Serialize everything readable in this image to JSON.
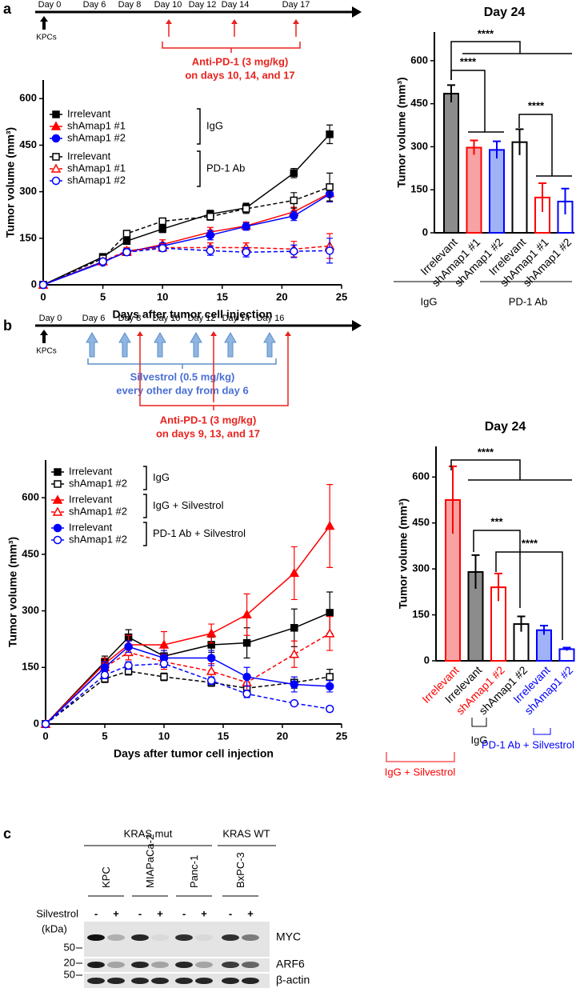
{
  "panels": [
    "a",
    "b",
    "c"
  ],
  "timeline_a": {
    "days": [
      "Day 0",
      "Day 6",
      "Day 8",
      "Day 10",
      "Day 12",
      "Day 14",
      "Day 17"
    ],
    "cells": "KPCs",
    "treatment": "Anti-PD-1 (3 mg/kg)",
    "schedule": "on days 10, 14, and 17"
  },
  "timeline_b": {
    "days": [
      "Day 0",
      "Day 6",
      "Day 8",
      "Day 10",
      "Day 12",
      "Day 14",
      "Day 16"
    ],
    "cells": "KPCs",
    "drug": "Silvestrol (0.5 mg/kg)",
    "drug_schedule": "every other day from day 6",
    "treatment": "Anti-PD-1 (3 mg/kg)",
    "schedule": "on days 9, 13, and 17"
  },
  "chart_data": [
    {
      "type": "line",
      "xlabel": "Days after tumor cell injection",
      "ylabel": "Tumor volume (mm³)",
      "x": [
        0,
        5,
        7,
        10,
        14,
        17,
        21,
        24
      ],
      "xlim": [
        0,
        25
      ],
      "xticks": [
        0,
        5,
        10,
        15,
        20,
        25
      ],
      "ylim": [
        0,
        660
      ],
      "yticks": [
        0,
        150,
        300,
        450,
        600
      ],
      "legend_groups": [
        "IgG",
        "PD-1 Ab"
      ],
      "series": [
        {
          "name": "Irrelevant",
          "color": "#000000",
          "marker": "square",
          "filled": true,
          "dashed": false,
          "values": [
            0,
            90,
            141,
            180,
            228,
            248,
            360,
            485
          ],
          "errors": [
            0,
            10,
            10,
            12,
            12,
            15,
            15,
            30
          ]
        },
        {
          "name": "shAmap1 #1",
          "color": "#ff0000",
          "marker": "triangle",
          "filled": true,
          "dashed": false,
          "values": [
            0,
            75,
            105,
            130,
            170,
            190,
            235,
            295
          ],
          "errors": [
            0,
            8,
            10,
            15,
            15,
            12,
            15,
            25
          ]
        },
        {
          "name": "shAmap1 #2",
          "color": "#0000ff",
          "marker": "circle",
          "filled": true,
          "dashed": false,
          "values": [
            0,
            72,
            108,
            125,
            160,
            188,
            222,
            292
          ],
          "errors": [
            0,
            8,
            10,
            10,
            15,
            12,
            15,
            25
          ]
        },
        {
          "name": "Irrelevant",
          "color": "#000000",
          "marker": "square",
          "filled": false,
          "dashed": true,
          "values": [
            0,
            85,
            165,
            205,
            220,
            245,
            272,
            315
          ],
          "errors": [
            0,
            10,
            10,
            10,
            12,
            15,
            25,
            45
          ]
        },
        {
          "name": "shAmap1 #1",
          "color": "#ff0000",
          "marker": "triangle",
          "filled": false,
          "dashed": true,
          "values": [
            0,
            75,
            110,
            120,
            120,
            120,
            115,
            125
          ],
          "errors": [
            0,
            8,
            10,
            12,
            15,
            15,
            25,
            40
          ]
        },
        {
          "name": "shAmap1 #2",
          "color": "#0000ff",
          "marker": "circle",
          "filled": false,
          "dashed": true,
          "values": [
            0,
            75,
            105,
            118,
            110,
            105,
            108,
            110
          ],
          "errors": [
            0,
            8,
            10,
            10,
            15,
            15,
            20,
            40
          ]
        }
      ]
    },
    {
      "type": "bar",
      "title": "Day 24",
      "ylabel": "Tumor volume (mm³)",
      "categories": [
        "Irrelevant",
        "shAmap1 #1",
        "shAmap1 #2",
        "Irrelevant",
        "shAmap1 #1",
        "shAmap1 #2"
      ],
      "values": [
        485,
        297,
        289,
        316,
        123,
        109
      ],
      "errors": [
        30,
        25,
        30,
        45,
        50,
        45
      ],
      "colors": [
        "#8c8c8c",
        "#f7a3a3",
        "#9fb2f5",
        "#ffffff",
        "#ffffff",
        "#ffffff"
      ],
      "edge_colors": [
        "#000000",
        "#ff0000",
        "#0000ff",
        "#000000",
        "#ff0000",
        "#0000ff"
      ],
      "label_colors": [
        "#000000",
        "#000000",
        "#000000",
        "#000000",
        "#000000",
        "#000000"
      ],
      "ylim": [
        0,
        700
      ],
      "yticks": [
        0,
        150,
        300,
        450,
        600
      ],
      "significance": [
        "****",
        "****",
        "****"
      ],
      "groups": [
        "IgG",
        "PD-1 Ab"
      ],
      "group_colors": [
        "#000000",
        "#000000"
      ]
    },
    {
      "type": "line",
      "xlabel": "Days after tumor cell injection",
      "ylabel": "Tumor volume (mm³)",
      "x": [
        0,
        5,
        7,
        10,
        14,
        17,
        21,
        24
      ],
      "xlim": [
        0,
        25
      ],
      "xticks": [
        0,
        5,
        10,
        15,
        20,
        25
      ],
      "ylim": [
        0,
        700
      ],
      "yticks": [
        0,
        150,
        300,
        450,
        600
      ],
      "legend_groups": [
        "IgG",
        "IgG + Silvestrol",
        "PD-1 Ab + Silvestrol"
      ],
      "series": [
        {
          "name": "Irrelevant",
          "color": "#000000",
          "marker": "square",
          "filled": true,
          "dashed": false,
          "values": [
            0,
            165,
            230,
            180,
            210,
            215,
            255,
            295
          ],
          "errors": [
            0,
            15,
            20,
            15,
            20,
            40,
            50,
            55
          ]
        },
        {
          "name": "shAmap1 #2",
          "color": "#000000",
          "marker": "square",
          "filled": false,
          "dashed": true,
          "values": [
            0,
            120,
            140,
            125,
            110,
            95,
            110,
            125
          ],
          "errors": [
            0,
            10,
            10,
            10,
            10,
            15,
            15,
            20
          ]
        },
        {
          "name": "Irrelevant",
          "color": "#ff0000",
          "marker": "triangle",
          "filled": true,
          "dashed": false,
          "values": [
            0,
            160,
            210,
            210,
            240,
            290,
            400,
            525
          ],
          "errors": [
            0,
            15,
            25,
            35,
            25,
            55,
            70,
            110
          ]
        },
        {
          "name": "shAmap1 #2",
          "color": "#ff0000",
          "marker": "triangle",
          "filled": false,
          "dashed": true,
          "values": [
            0,
            150,
            190,
            165,
            140,
            110,
            185,
            240
          ],
          "errors": [
            0,
            12,
            20,
            20,
            20,
            20,
            35,
            45
          ]
        },
        {
          "name": "Irrelevant",
          "color": "#0000ff",
          "marker": "circle",
          "filled": true,
          "dashed": false,
          "values": [
            0,
            150,
            205,
            175,
            175,
            125,
            105,
            100
          ],
          "errors": [
            0,
            15,
            15,
            20,
            20,
            25,
            20,
            15
          ]
        },
        {
          "name": "shAmap1 #2",
          "color": "#0000ff",
          "marker": "circle",
          "filled": false,
          "dashed": true,
          "values": [
            0,
            130,
            155,
            160,
            115,
            80,
            55,
            40
          ],
          "errors": [
            0,
            10,
            10,
            10,
            10,
            10,
            5,
            5
          ]
        }
      ]
    },
    {
      "type": "bar",
      "title": "Day 24",
      "ylabel": "Tumor volume (mm³)",
      "categories": [
        "Irrelevant",
        "Irrelevant",
        "shAmap1 #2",
        "shAmap1 #2",
        "Irrelevant",
        "shAmap1 #2"
      ],
      "values": [
        525,
        290,
        240,
        120,
        100,
        38
      ],
      "errors": [
        110,
        55,
        45,
        25,
        15,
        5
      ],
      "colors": [
        "#f7a3a3",
        "#8c8c8c",
        "#ffffff",
        "#ffffff",
        "#9fb2f5",
        "#ffffff"
      ],
      "edge_colors": [
        "#ff0000",
        "#000000",
        "#ff0000",
        "#000000",
        "#0000ff",
        "#0000ff"
      ],
      "label_colors": [
        "#ff0000",
        "#000000",
        "#ff0000",
        "#000000",
        "#0000ff",
        "#0000ff"
      ],
      "ylim": [
        0,
        700
      ],
      "yticks": [
        0,
        150,
        300,
        450,
        600
      ],
      "significance": [
        "****",
        "***",
        "****"
      ],
      "groups": [
        "IgG",
        "PD-1 Ab + Silvestrol",
        "IgG + Silvestrol"
      ],
      "group_colors": [
        "#000000",
        "#0000ff",
        "#ff0000"
      ]
    }
  ],
  "blot": {
    "genotypes": [
      "KRAS mut",
      "KRAS WT"
    ],
    "lines": [
      "KPC",
      "MIAPaCa-2",
      "Panc-1",
      "BxPC-3"
    ],
    "treatment": "Silvestrol",
    "signs": [
      "-",
      "+",
      "-",
      "+",
      "-",
      "+",
      "-",
      "+"
    ],
    "kda": "(kDa)",
    "markers": [
      50,
      20,
      50
    ],
    "proteins": [
      "MYC",
      "ARF6",
      "β-actin"
    ]
  }
}
